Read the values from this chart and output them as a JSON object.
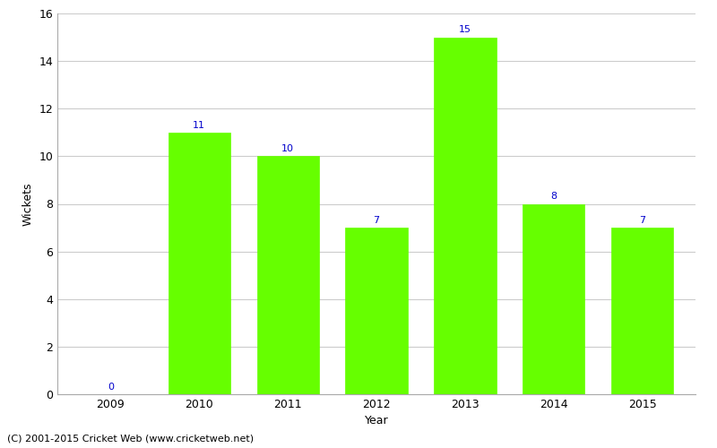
{
  "years": [
    "2009",
    "2010",
    "2011",
    "2012",
    "2013",
    "2014",
    "2015"
  ],
  "values": [
    0,
    11,
    10,
    7,
    15,
    8,
    7
  ],
  "bar_color": "#66ff00",
  "bar_edge_color": "#66ff00",
  "label_color": "#0000cc",
  "label_fontsize": 8,
  "xlabel": "Year",
  "ylabel": "Wickets",
  "ylim": [
    0,
    16
  ],
  "yticks": [
    0,
    2,
    4,
    6,
    8,
    10,
    12,
    14,
    16
  ],
  "grid_color": "#cccccc",
  "background_color": "#ffffff",
  "footer_text": "(C) 2001-2015 Cricket Web (www.cricketweb.net)",
  "footer_fontsize": 8,
  "axis_label_fontsize": 9,
  "tick_fontsize": 9,
  "bar_width": 0.7
}
